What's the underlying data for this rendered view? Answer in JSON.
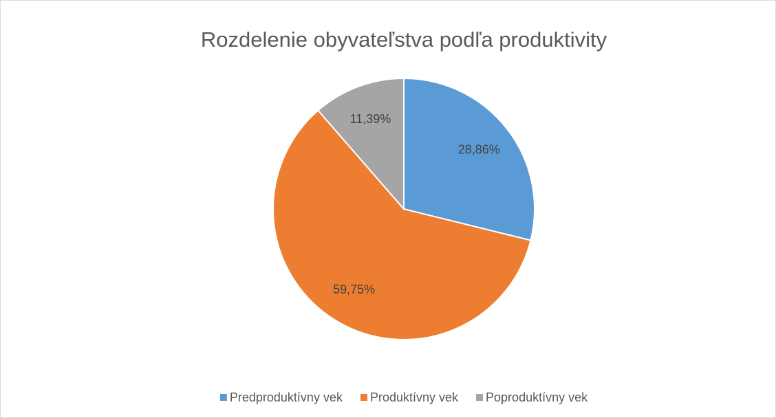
{
  "chart_data": {
    "type": "pie",
    "title": "Rozdelenie obyvateľstva podľa produktivity",
    "categories": [
      "Predproduktívny vek",
      "Produktívny vek",
      "Poproduktívny vek"
    ],
    "values": [
      28.86,
      59.75,
      11.39
    ],
    "value_labels": [
      "28,86%",
      "59,75%",
      "11,39%"
    ],
    "colors": [
      "#5b9bd5",
      "#ed7d31",
      "#a5a5a5"
    ],
    "legend": "bottom"
  }
}
